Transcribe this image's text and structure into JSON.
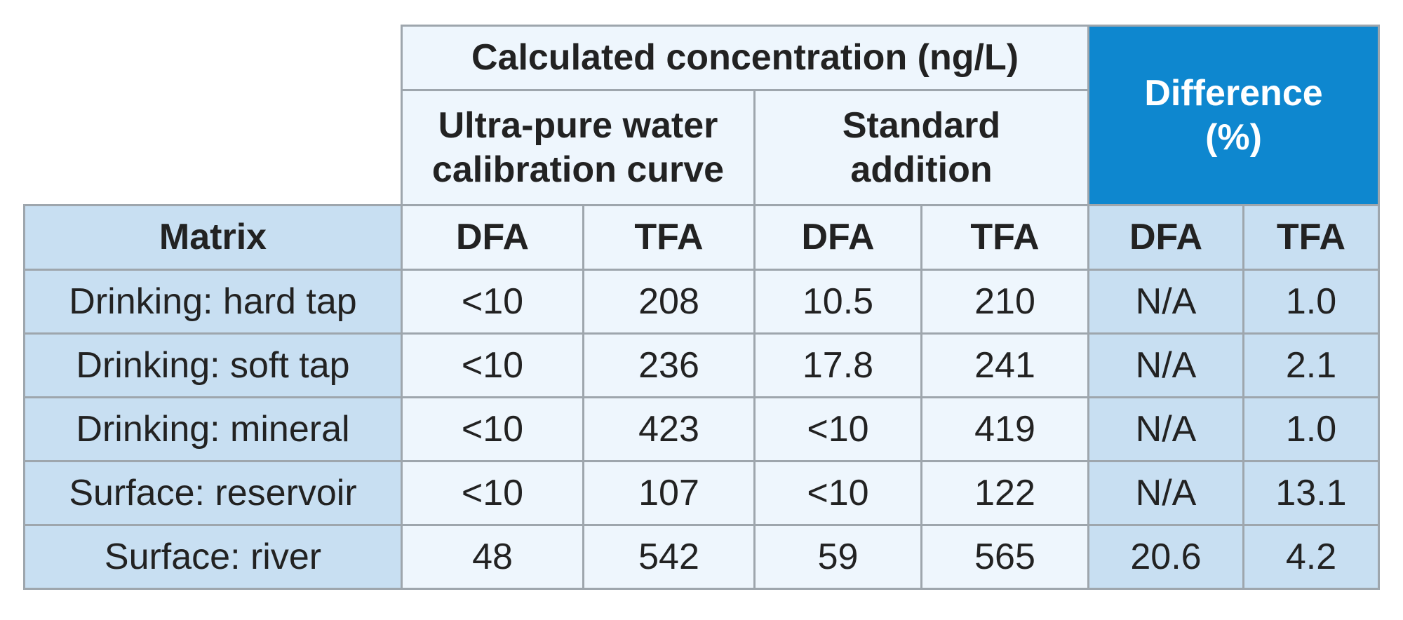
{
  "header": {
    "calculated_concentration": "Calculated concentration (ng/L)",
    "ultra_pure_line1": "Ultra-pure water",
    "ultra_pure_line2": "calibration curve",
    "standard_line1": "Standard",
    "standard_line2": "addition",
    "difference_line1": "Difference",
    "difference_line2": "(%)"
  },
  "columns": [
    "Matrix",
    "DFA",
    "TFA",
    "DFA",
    "TFA",
    "DFA",
    "TFA"
  ],
  "rows": [
    {
      "matrix": "Drinking: hard tap",
      "up_dfa": "<10",
      "up_tfa": "208",
      "sa_dfa": "10.5",
      "sa_tfa": "210",
      "diff_dfa": "N/A",
      "diff_tfa": "1.0"
    },
    {
      "matrix": "Drinking: soft tap",
      "up_dfa": "<10",
      "up_tfa": "236",
      "sa_dfa": "17.8",
      "sa_tfa": "241",
      "diff_dfa": "N/A",
      "diff_tfa": "2.1"
    },
    {
      "matrix": "Drinking: mineral",
      "up_dfa": "<10",
      "up_tfa": "423",
      "sa_dfa": "<10",
      "sa_tfa": "419",
      "diff_dfa": "N/A",
      "diff_tfa": "1.0"
    },
    {
      "matrix": "Surface: reservoir",
      "up_dfa": "<10",
      "up_tfa": "107",
      "sa_dfa": "<10",
      "sa_tfa": "122",
      "diff_dfa": "N/A",
      "diff_tfa": "13.1"
    },
    {
      "matrix": "Surface: river",
      "up_dfa": "48",
      "up_tfa": "542",
      "sa_dfa": "59",
      "sa_tfa": "565",
      "diff_dfa": "20.6",
      "diff_tfa": "4.2"
    }
  ],
  "colors": {
    "header_light": "#eef6fd",
    "header_accent": "#0e87cf",
    "row_label_bg": "#c8dff2",
    "border": "#9ea6ad"
  }
}
